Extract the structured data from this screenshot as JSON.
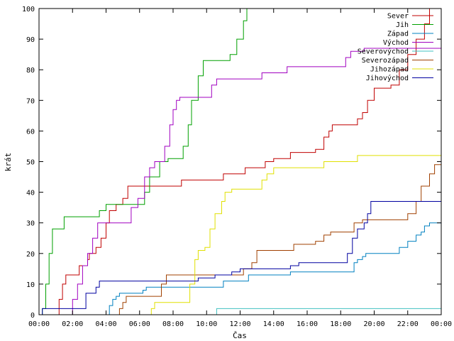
{
  "chart_data": {
    "type": "line",
    "xlabel": "Čas",
    "ylabel": "krát",
    "ylim": [
      0,
      100
    ],
    "y_ticks": [
      "0",
      "10",
      "20",
      "30",
      "40",
      "50",
      "60",
      "70",
      "80",
      "90",
      "100"
    ],
    "x_ticks": [
      "00:00",
      "02:00",
      "04:00",
      "06:00",
      "08:00",
      "10:00",
      "12:00",
      "14:00",
      "16:00",
      "18:00",
      "20:00",
      "22:00",
      "00:00"
    ],
    "x_range_hours": [
      0,
      24
    ],
    "grid": false,
    "legend_position": "top-right",
    "series": [
      {
        "name": "Sever",
        "color": "#c00000",
        "points": [
          [
            0,
            0
          ],
          [
            1.0,
            0
          ],
          [
            1.2,
            5
          ],
          [
            1.4,
            10
          ],
          [
            1.6,
            13
          ],
          [
            2.2,
            13
          ],
          [
            2.4,
            16
          ],
          [
            2.9,
            18
          ],
          [
            3.0,
            20
          ],
          [
            3.4,
            22
          ],
          [
            3.7,
            25
          ],
          [
            4.0,
            30
          ],
          [
            4.2,
            34
          ],
          [
            4.6,
            36
          ],
          [
            5.0,
            38
          ],
          [
            5.3,
            42
          ],
          [
            8.5,
            44
          ],
          [
            10.3,
            44
          ],
          [
            11.0,
            46
          ],
          [
            12.3,
            48
          ],
          [
            13.5,
            50
          ],
          [
            14.0,
            51
          ],
          [
            15.0,
            53
          ],
          [
            16.5,
            54
          ],
          [
            17.0,
            58
          ],
          [
            17.3,
            60
          ],
          [
            17.5,
            62
          ],
          [
            18.5,
            62
          ],
          [
            19.0,
            64
          ],
          [
            19.3,
            66
          ],
          [
            19.6,
            70
          ],
          [
            20.0,
            74
          ],
          [
            21.0,
            75
          ],
          [
            21.5,
            80
          ],
          [
            22.0,
            85
          ],
          [
            22.5,
            90
          ],
          [
            23.0,
            95
          ],
          [
            23.3,
            100
          ]
        ]
      },
      {
        "name": "Jih",
        "color": "#00a000",
        "points": [
          [
            0,
            0
          ],
          [
            0.2,
            2
          ],
          [
            0.4,
            10
          ],
          [
            0.6,
            20
          ],
          [
            0.8,
            28
          ],
          [
            1.1,
            28
          ],
          [
            1.5,
            32
          ],
          [
            3.3,
            32
          ],
          [
            3.6,
            34
          ],
          [
            4.0,
            36
          ],
          [
            6.1,
            36
          ],
          [
            6.3,
            40
          ],
          [
            6.6,
            45
          ],
          [
            7.2,
            50
          ],
          [
            7.7,
            51
          ],
          [
            8.4,
            51
          ],
          [
            8.6,
            55
          ],
          [
            8.9,
            62
          ],
          [
            9.1,
            70
          ],
          [
            9.5,
            78
          ],
          [
            9.8,
            83
          ],
          [
            11.0,
            83
          ],
          [
            11.4,
            85
          ],
          [
            11.8,
            90
          ],
          [
            12.2,
            96
          ],
          [
            12.4,
            100
          ]
        ]
      },
      {
        "name": "Západ",
        "color": "#0080c0",
        "points": [
          [
            0,
            0
          ],
          [
            4.1,
            0
          ],
          [
            4.2,
            3
          ],
          [
            4.4,
            5
          ],
          [
            4.6,
            6
          ],
          [
            4.8,
            7
          ],
          [
            5.9,
            7
          ],
          [
            6.2,
            8
          ],
          [
            6.4,
            9
          ],
          [
            10.3,
            9
          ],
          [
            11.0,
            11
          ],
          [
            12.5,
            13
          ],
          [
            15.0,
            14
          ],
          [
            18.3,
            14
          ],
          [
            18.8,
            17
          ],
          [
            19.0,
            18
          ],
          [
            19.3,
            19
          ],
          [
            19.5,
            20
          ],
          [
            21.0,
            20
          ],
          [
            21.5,
            22
          ],
          [
            22.0,
            24
          ],
          [
            22.5,
            26
          ],
          [
            22.8,
            27
          ],
          [
            23.0,
            29
          ],
          [
            23.3,
            30
          ],
          [
            24,
            30
          ]
        ]
      },
      {
        "name": "Východ",
        "color": "#a000c0",
        "points": [
          [
            0,
            0
          ],
          [
            1.8,
            0
          ],
          [
            2.0,
            5
          ],
          [
            2.3,
            10
          ],
          [
            2.6,
            16
          ],
          [
            2.9,
            20
          ],
          [
            3.2,
            25
          ],
          [
            3.5,
            30
          ],
          [
            5.2,
            30
          ],
          [
            5.5,
            35
          ],
          [
            5.9,
            38
          ],
          [
            6.3,
            45
          ],
          [
            6.6,
            48
          ],
          [
            6.9,
            50
          ],
          [
            7.3,
            50
          ],
          [
            7.5,
            55
          ],
          [
            7.8,
            62
          ],
          [
            8.0,
            67
          ],
          [
            8.2,
            70
          ],
          [
            8.4,
            71
          ],
          [
            10.0,
            71
          ],
          [
            10.3,
            75
          ],
          [
            10.6,
            77
          ],
          [
            13.0,
            77
          ],
          [
            13.3,
            79
          ],
          [
            14.5,
            79
          ],
          [
            14.8,
            81
          ],
          [
            18.0,
            81
          ],
          [
            18.3,
            84
          ],
          [
            18.6,
            86
          ],
          [
            19.0,
            86
          ],
          [
            19.4,
            87
          ],
          [
            24,
            87
          ]
        ]
      },
      {
        "name": "Severovýchod",
        "color": "#40c0c0",
        "points": [
          [
            0,
            0
          ],
          [
            10.4,
            0
          ],
          [
            10.6,
            2
          ],
          [
            24,
            2
          ]
        ]
      },
      {
        "name": "Severozápad",
        "color": "#a04000",
        "points": [
          [
            0,
            0
          ],
          [
            4.5,
            0
          ],
          [
            4.8,
            2
          ],
          [
            5.0,
            4
          ],
          [
            5.2,
            6
          ],
          [
            7.0,
            6
          ],
          [
            7.3,
            10
          ],
          [
            7.6,
            13
          ],
          [
            11.5,
            13
          ],
          [
            12.2,
            15
          ],
          [
            12.7,
            17
          ],
          [
            13.0,
            21
          ],
          [
            14.8,
            21
          ],
          [
            15.2,
            23
          ],
          [
            16.5,
            24
          ],
          [
            17.0,
            26
          ],
          [
            17.4,
            27
          ],
          [
            18.3,
            27
          ],
          [
            18.8,
            30
          ],
          [
            19.3,
            31
          ],
          [
            21.5,
            31
          ],
          [
            22.0,
            33
          ],
          [
            22.5,
            37
          ],
          [
            22.8,
            42
          ],
          [
            23.3,
            46
          ],
          [
            23.6,
            49
          ],
          [
            24,
            49
          ]
        ]
      },
      {
        "name": "Jihozápad",
        "color": "#e0e000",
        "points": [
          [
            0,
            0
          ],
          [
            6.5,
            0
          ],
          [
            6.7,
            2
          ],
          [
            6.9,
            4
          ],
          [
            8.5,
            4
          ],
          [
            9.0,
            10
          ],
          [
            9.3,
            18
          ],
          [
            9.5,
            21
          ],
          [
            9.9,
            22
          ],
          [
            10.2,
            28
          ],
          [
            10.5,
            33
          ],
          [
            10.9,
            37
          ],
          [
            11.1,
            40
          ],
          [
            11.5,
            41
          ],
          [
            13.0,
            41
          ],
          [
            13.3,
            44
          ],
          [
            13.6,
            46
          ],
          [
            14.0,
            48
          ],
          [
            16.5,
            48
          ],
          [
            17.0,
            50
          ],
          [
            19.0,
            52
          ],
          [
            24,
            52
          ]
        ]
      },
      {
        "name": "Jihovýchod",
        "color": "#0000a0",
        "points": [
          [
            0,
            0
          ],
          [
            0.2,
            2
          ],
          [
            2.6,
            2
          ],
          [
            2.8,
            7
          ],
          [
            3.4,
            9
          ],
          [
            3.6,
            11
          ],
          [
            8.5,
            11
          ],
          [
            9.5,
            12
          ],
          [
            10.5,
            13
          ],
          [
            11.5,
            14
          ],
          [
            12.0,
            15
          ],
          [
            15.0,
            16
          ],
          [
            15.5,
            17
          ],
          [
            18.0,
            17
          ],
          [
            18.4,
            20
          ],
          [
            18.7,
            25
          ],
          [
            19.0,
            28
          ],
          [
            19.4,
            30
          ],
          [
            19.6,
            33
          ],
          [
            19.8,
            37
          ],
          [
            24,
            37
          ]
        ]
      }
    ]
  }
}
